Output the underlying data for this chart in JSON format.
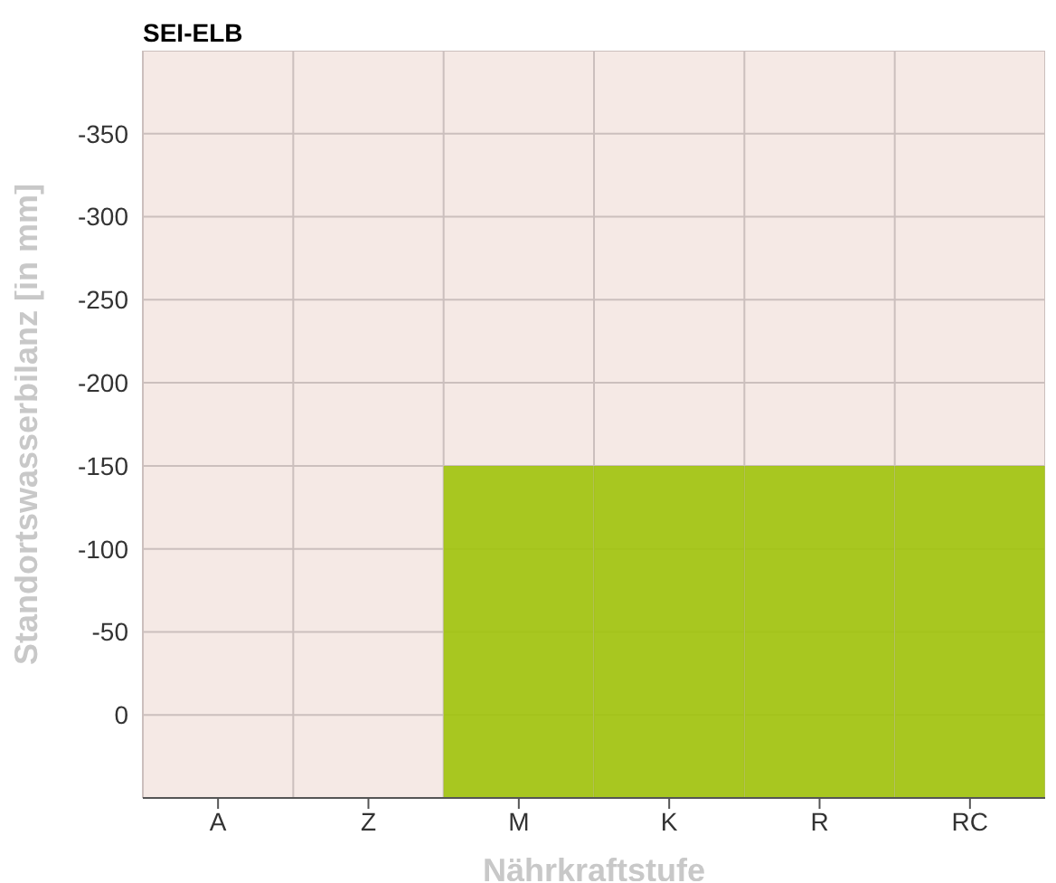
{
  "chart_data": {
    "type": "bar",
    "title": "SEI-ELB",
    "xlabel": "Nährkraftstufe",
    "ylabel": "Standortswasserbilanz [in mm]",
    "categories": [
      "A",
      "Z",
      "M",
      "K",
      "R",
      "RC"
    ],
    "values": [
      null,
      null,
      -200,
      -200,
      -200,
      -200
    ],
    "base": [
      null,
      null,
      50,
      50,
      50,
      50
    ],
    "color": "#a0c30a",
    "ylim": [
      50,
      -400
    ],
    "yticks": [
      0,
      -50,
      -100,
      -150,
      -200,
      -250,
      -300,
      -350
    ],
    "grid": true
  }
}
